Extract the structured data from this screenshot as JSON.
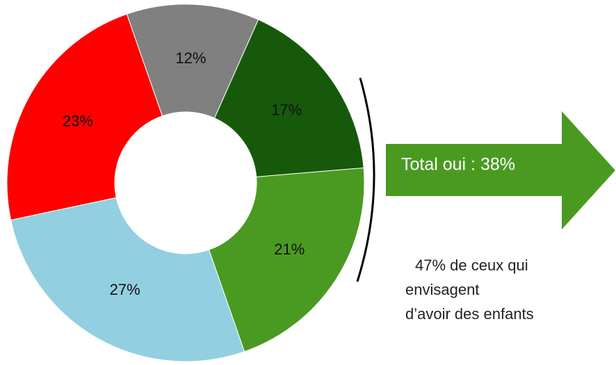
{
  "chart_data": {
    "type": "donut",
    "values": [
      17,
      21,
      27,
      23,
      12
    ],
    "value_labels": [
      "17%",
      "21%",
      "27%",
      "23%",
      "12%"
    ],
    "colors": [
      "#17590a",
      "#4a9a22",
      "#92cfe0",
      "#ff0000",
      "#808080"
    ],
    "callout": "Total oui : 38%",
    "note": [
      "47% de ceux qui",
      "envisagent",
      "d’avoir des  enfants"
    ]
  }
}
